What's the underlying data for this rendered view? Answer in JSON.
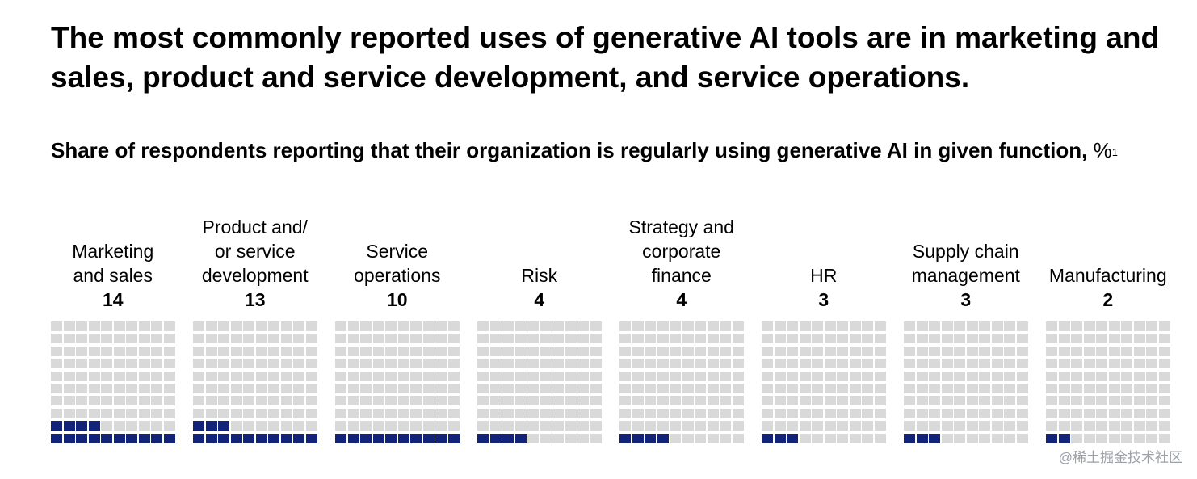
{
  "title": "The most commonly reported uses of generative AI tools are in marketing and sales, product and service development, and service operations.",
  "subtitle": "Share of respondents reporting that their organization is regularly using generative AI in given function,",
  "subtitle_unit": "%",
  "subtitle_footnote": "1",
  "watermark": "@稀土掘金技术社区",
  "colors": {
    "filled": "#13237a",
    "empty": "#d9d9d9"
  },
  "chart_data": {
    "type": "waffle",
    "title": "Share of respondents reporting that their organization is regularly using generative AI in given function, %",
    "unit": "%",
    "grid_total": 100,
    "categories": [
      "Marketing\nand sales",
      "Product and/\nor service\ndevelopment",
      "Service\noperations",
      "Risk",
      "Strategy and\ncorporate\nfinance",
      "HR",
      "Supply chain\nmanagement",
      "Manufacturing"
    ],
    "values": [
      14,
      13,
      10,
      4,
      4,
      3,
      3,
      2
    ],
    "value_labels": [
      "14",
      "13",
      "10",
      "4",
      "4",
      "3",
      "3",
      "2"
    ]
  }
}
